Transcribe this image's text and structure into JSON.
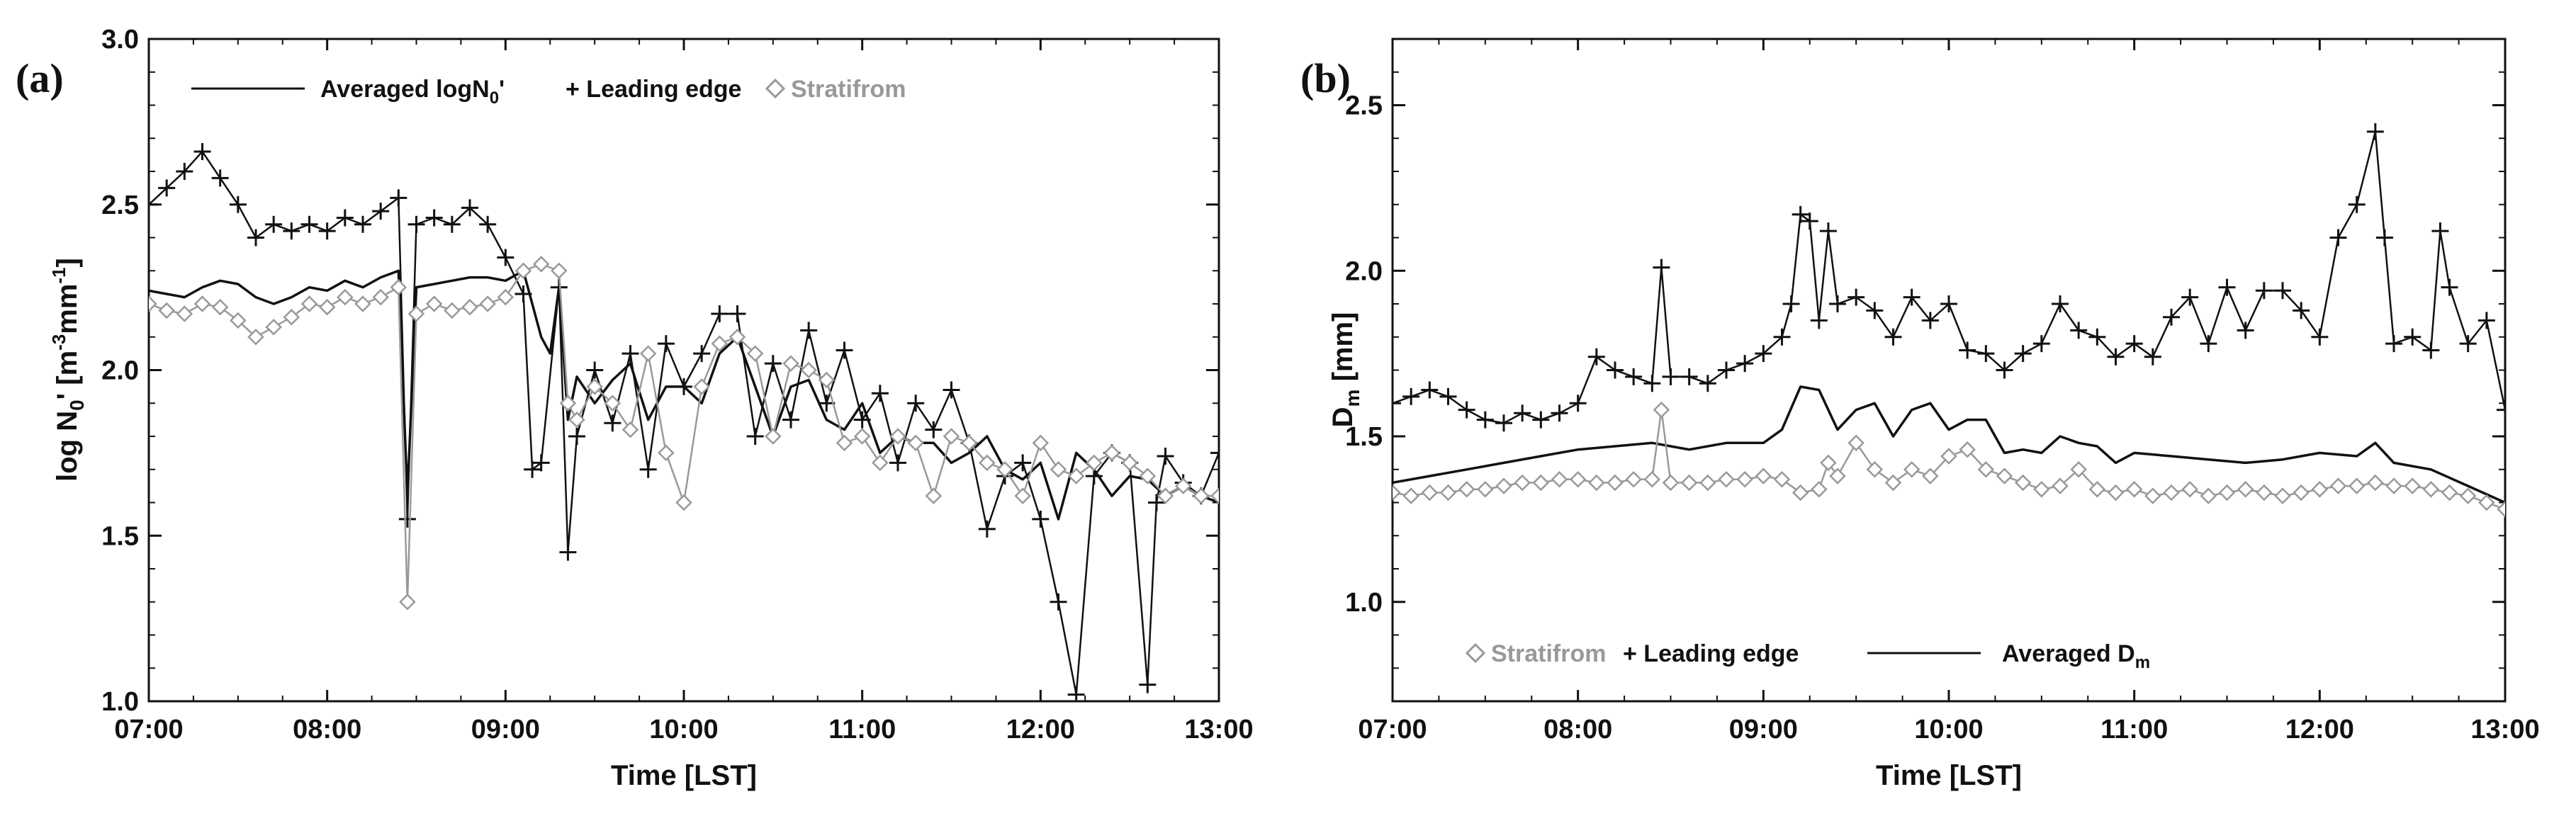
{
  "chart_data": [
    {
      "panel": "(a)",
      "type": "line",
      "xlabel": "Time [LST]",
      "ylabel": "log N0' [m-3mm-1]",
      "ylabel_parts": {
        "pre": "log N",
        "sub": "0",
        "mid": "' [m",
        "sup1": "-3",
        "mid2": "mm",
        "sup2": "-1",
        "post": "]"
      },
      "x_ticks": [
        "07:00",
        "08:00",
        "09:00",
        "10:00",
        "11:00",
        "12:00",
        "13:00"
      ],
      "xlim": [
        7,
        13
      ],
      "ylim": [
        1.0,
        3.0
      ],
      "y_ticks": [
        "1.0",
        "1.5",
        "2.0",
        "2.5",
        "3.0"
      ],
      "legend": [
        {
          "label_pre": "Averaged logN",
          "label_sub": "0",
          "label_post": "'",
          "style": "line"
        },
        {
          "label": "+ Leading edge",
          "style": "plus"
        },
        {
          "label": "Stratifrom",
          "style": "diamond"
        }
      ],
      "series": [
        {
          "name": "Averaged",
          "style": "line",
          "color": "#111111",
          "x": [
            7.0,
            7.1,
            7.2,
            7.3,
            7.4,
            7.5,
            7.6,
            7.7,
            7.8,
            7.9,
            8.0,
            8.1,
            8.2,
            8.3,
            8.4,
            8.45,
            8.5,
            8.6,
            8.7,
            8.8,
            8.9,
            9.0,
            9.1,
            9.2,
            9.25,
            9.3,
            9.35,
            9.4,
            9.5,
            9.6,
            9.7,
            9.8,
            9.9,
            10.0,
            10.1,
            10.2,
            10.3,
            10.4,
            10.5,
            10.6,
            10.7,
            10.8,
            10.9,
            11.0,
            11.1,
            11.2,
            11.3,
            11.4,
            11.5,
            11.6,
            11.7,
            11.8,
            11.9,
            12.0,
            12.1,
            12.2,
            12.3,
            12.4,
            12.5,
            12.6,
            12.7,
            12.8,
            12.9,
            13.0
          ],
          "y": [
            2.24,
            2.23,
            2.22,
            2.25,
            2.27,
            2.26,
            2.22,
            2.2,
            2.22,
            2.25,
            2.24,
            2.27,
            2.25,
            2.28,
            2.3,
            1.62,
            2.25,
            2.26,
            2.27,
            2.28,
            2.28,
            2.27,
            2.3,
            2.1,
            2.05,
            2.25,
            1.85,
            1.98,
            1.9,
            1.97,
            2.02,
            1.85,
            1.95,
            1.95,
            1.9,
            2.05,
            2.1,
            1.95,
            1.8,
            1.95,
            1.97,
            1.85,
            1.82,
            1.9,
            1.75,
            1.8,
            1.78,
            1.78,
            1.72,
            1.75,
            1.8,
            1.7,
            1.67,
            1.72,
            1.55,
            1.75,
            1.7,
            1.62,
            1.68,
            1.67,
            1.62,
            1.65,
            1.62,
            1.6
          ]
        },
        {
          "name": "Leading edge",
          "style": "plus",
          "color": "#111111",
          "x": [
            7.0,
            7.1,
            7.2,
            7.3,
            7.4,
            7.5,
            7.6,
            7.7,
            7.8,
            7.9,
            8.0,
            8.1,
            8.2,
            8.3,
            8.4,
            8.45,
            8.5,
            8.6,
            8.7,
            8.8,
            8.9,
            9.0,
            9.1,
            9.15,
            9.2,
            9.3,
            9.35,
            9.4,
            9.5,
            9.6,
            9.7,
            9.8,
            9.9,
            10.0,
            10.1,
            10.2,
            10.3,
            10.4,
            10.5,
            10.6,
            10.7,
            10.8,
            10.9,
            11.0,
            11.1,
            11.2,
            11.3,
            11.4,
            11.5,
            11.6,
            11.7,
            11.8,
            11.9,
            12.0,
            12.1,
            12.2,
            12.3,
            12.4,
            12.5,
            12.6,
            12.65,
            12.7,
            12.8,
            12.9,
            13.0
          ],
          "y": [
            2.5,
            2.55,
            2.6,
            2.66,
            2.58,
            2.5,
            2.4,
            2.44,
            2.42,
            2.44,
            2.42,
            2.46,
            2.44,
            2.48,
            2.52,
            1.55,
            2.44,
            2.46,
            2.44,
            2.49,
            2.44,
            2.34,
            2.23,
            1.7,
            1.72,
            2.25,
            1.45,
            1.8,
            2.0,
            1.84,
            2.05,
            1.7,
            2.08,
            1.95,
            2.05,
            2.17,
            2.17,
            1.8,
            2.02,
            1.85,
            2.12,
            1.9,
            2.06,
            1.85,
            1.93,
            1.72,
            1.9,
            1.82,
            1.94,
            1.78,
            1.52,
            1.68,
            1.72,
            1.55,
            1.3,
            1.02,
            1.68,
            1.75,
            1.72,
            1.05,
            1.6,
            1.74,
            1.66,
            1.62,
            1.75
          ]
        },
        {
          "name": "Stratifrom",
          "style": "diamond",
          "color": "#999999",
          "x": [
            7.0,
            7.1,
            7.2,
            7.3,
            7.4,
            7.5,
            7.6,
            7.7,
            7.8,
            7.9,
            8.0,
            8.1,
            8.2,
            8.3,
            8.4,
            8.45,
            8.5,
            8.6,
            8.7,
            8.8,
            8.9,
            9.0,
            9.1,
            9.2,
            9.3,
            9.35,
            9.4,
            9.5,
            9.6,
            9.7,
            9.8,
            9.9,
            10.0,
            10.1,
            10.2,
            10.3,
            10.4,
            10.5,
            10.6,
            10.7,
            10.8,
            10.9,
            11.0,
            11.1,
            11.2,
            11.3,
            11.4,
            11.5,
            11.6,
            11.7,
            11.8,
            11.9,
            12.0,
            12.1,
            12.2,
            12.3,
            12.4,
            12.5,
            12.6,
            12.7,
            12.8,
            12.9,
            13.0
          ],
          "y": [
            2.2,
            2.18,
            2.17,
            2.2,
            2.19,
            2.15,
            2.1,
            2.13,
            2.16,
            2.2,
            2.19,
            2.22,
            2.2,
            2.22,
            2.25,
            1.3,
            2.17,
            2.2,
            2.18,
            2.19,
            2.2,
            2.22,
            2.3,
            2.32,
            2.3,
            1.9,
            1.85,
            1.95,
            1.9,
            1.82,
            2.05,
            1.75,
            1.6,
            1.95,
            2.08,
            2.1,
            2.05,
            1.8,
            2.02,
            2.0,
            1.97,
            1.78,
            1.8,
            1.72,
            1.8,
            1.78,
            1.62,
            1.8,
            1.78,
            1.72,
            1.7,
            1.62,
            1.78,
            1.7,
            1.68,
            1.72,
            1.75,
            1.72,
            1.68,
            1.62,
            1.65,
            1.62,
            1.62
          ]
        }
      ]
    },
    {
      "panel": "(b)",
      "type": "line",
      "xlabel": "Time [LST]",
      "ylabel": "Dm [mm]",
      "ylabel_parts": {
        "pre": "D",
        "sub": "m",
        "post": " [mm]"
      },
      "x_ticks": [
        "07:00",
        "08:00",
        "09:00",
        "10:00",
        "11:00",
        "12:00",
        "13:00"
      ],
      "xlim": [
        7,
        13
      ],
      "ylim": [
        0.7,
        2.7
      ],
      "y_ticks": [
        "1.0",
        "1.5",
        "2.0",
        "2.5"
      ],
      "y_tick_values": [
        1.0,
        1.5,
        2.0,
        2.5
      ],
      "legend": [
        {
          "label": "Stratifrom",
          "style": "diamond"
        },
        {
          "label": "+ Leading edge",
          "style": "plus"
        },
        {
          "label_pre": "Averaged D",
          "label_sub": "m",
          "label_post": "",
          "style": "line"
        }
      ],
      "series": [
        {
          "name": "Averaged",
          "style": "line",
          "color": "#111111",
          "x": [
            7.0,
            7.2,
            7.4,
            7.6,
            7.8,
            8.0,
            8.2,
            8.4,
            8.5,
            8.6,
            8.8,
            9.0,
            9.1,
            9.2,
            9.3,
            9.4,
            9.5,
            9.6,
            9.7,
            9.8,
            9.9,
            10.0,
            10.1,
            10.2,
            10.3,
            10.4,
            10.5,
            10.6,
            10.7,
            10.8,
            10.9,
            11.0,
            11.2,
            11.4,
            11.6,
            11.8,
            12.0,
            12.2,
            12.3,
            12.4,
            12.6,
            12.8,
            13.0
          ],
          "y": [
            1.36,
            1.38,
            1.4,
            1.42,
            1.44,
            1.46,
            1.47,
            1.48,
            1.47,
            1.46,
            1.48,
            1.48,
            1.52,
            1.65,
            1.64,
            1.52,
            1.58,
            1.6,
            1.5,
            1.58,
            1.6,
            1.52,
            1.55,
            1.55,
            1.45,
            1.46,
            1.45,
            1.5,
            1.48,
            1.47,
            1.42,
            1.45,
            1.44,
            1.43,
            1.42,
            1.43,
            1.45,
            1.44,
            1.48,
            1.42,
            1.4,
            1.35,
            1.3
          ]
        },
        {
          "name": "Leading edge",
          "style": "plus",
          "color": "#111111",
          "x": [
            7.0,
            7.1,
            7.2,
            7.3,
            7.4,
            7.5,
            7.6,
            7.7,
            7.8,
            7.9,
            8.0,
            8.1,
            8.2,
            8.3,
            8.4,
            8.45,
            8.5,
            8.6,
            8.7,
            8.8,
            8.9,
            9.0,
            9.1,
            9.15,
            9.2,
            9.25,
            9.3,
            9.35,
            9.4,
            9.5,
            9.6,
            9.7,
            9.8,
            9.9,
            10.0,
            10.1,
            10.2,
            10.3,
            10.4,
            10.5,
            10.6,
            10.7,
            10.8,
            10.9,
            11.0,
            11.1,
            11.2,
            11.3,
            11.4,
            11.5,
            11.6,
            11.7,
            11.8,
            11.9,
            12.0,
            12.1,
            12.2,
            12.3,
            12.35,
            12.4,
            12.5,
            12.6,
            12.65,
            12.7,
            12.8,
            12.9,
            13.0
          ],
          "y": [
            1.6,
            1.62,
            1.64,
            1.62,
            1.58,
            1.55,
            1.54,
            1.57,
            1.55,
            1.57,
            1.6,
            1.74,
            1.7,
            1.68,
            1.66,
            2.01,
            1.68,
            1.68,
            1.66,
            1.7,
            1.72,
            1.75,
            1.8,
            1.9,
            2.17,
            2.15,
            1.85,
            2.12,
            1.9,
            1.92,
            1.88,
            1.8,
            1.92,
            1.85,
            1.9,
            1.76,
            1.75,
            1.7,
            1.75,
            1.78,
            1.9,
            1.82,
            1.8,
            1.74,
            1.78,
            1.74,
            1.86,
            1.92,
            1.78,
            1.95,
            1.82,
            1.94,
            1.94,
            1.88,
            1.8,
            2.1,
            2.2,
            2.42,
            2.1,
            1.78,
            1.8,
            1.76,
            2.12,
            1.95,
            1.78,
            1.85,
            1.58
          ]
        },
        {
          "name": "Stratifrom",
          "style": "diamond",
          "color": "#999999",
          "x": [
            7.0,
            7.1,
            7.2,
            7.3,
            7.4,
            7.5,
            7.6,
            7.7,
            7.8,
            7.9,
            8.0,
            8.1,
            8.2,
            8.3,
            8.4,
            8.45,
            8.5,
            8.6,
            8.7,
            8.8,
            8.9,
            9.0,
            9.1,
            9.2,
            9.3,
            9.35,
            9.4,
            9.5,
            9.6,
            9.7,
            9.8,
            9.9,
            10.0,
            10.1,
            10.2,
            10.3,
            10.4,
            10.5,
            10.6,
            10.7,
            10.8,
            10.9,
            11.0,
            11.1,
            11.2,
            11.3,
            11.4,
            11.5,
            11.6,
            11.7,
            11.8,
            11.9,
            12.0,
            12.1,
            12.2,
            12.3,
            12.4,
            12.5,
            12.6,
            12.7,
            12.8,
            12.9,
            13.0
          ],
          "y": [
            1.33,
            1.32,
            1.33,
            1.33,
            1.34,
            1.34,
            1.35,
            1.36,
            1.36,
            1.37,
            1.37,
            1.36,
            1.36,
            1.37,
            1.37,
            1.58,
            1.36,
            1.36,
            1.36,
            1.37,
            1.37,
            1.38,
            1.37,
            1.33,
            1.34,
            1.42,
            1.38,
            1.48,
            1.4,
            1.36,
            1.4,
            1.38,
            1.44,
            1.46,
            1.4,
            1.38,
            1.36,
            1.34,
            1.35,
            1.4,
            1.34,
            1.33,
            1.34,
            1.32,
            1.33,
            1.34,
            1.32,
            1.33,
            1.34,
            1.33,
            1.32,
            1.33,
            1.34,
            1.35,
            1.35,
            1.36,
            1.35,
            1.35,
            1.34,
            1.33,
            1.32,
            1.3,
            1.28
          ]
        }
      ]
    }
  ]
}
